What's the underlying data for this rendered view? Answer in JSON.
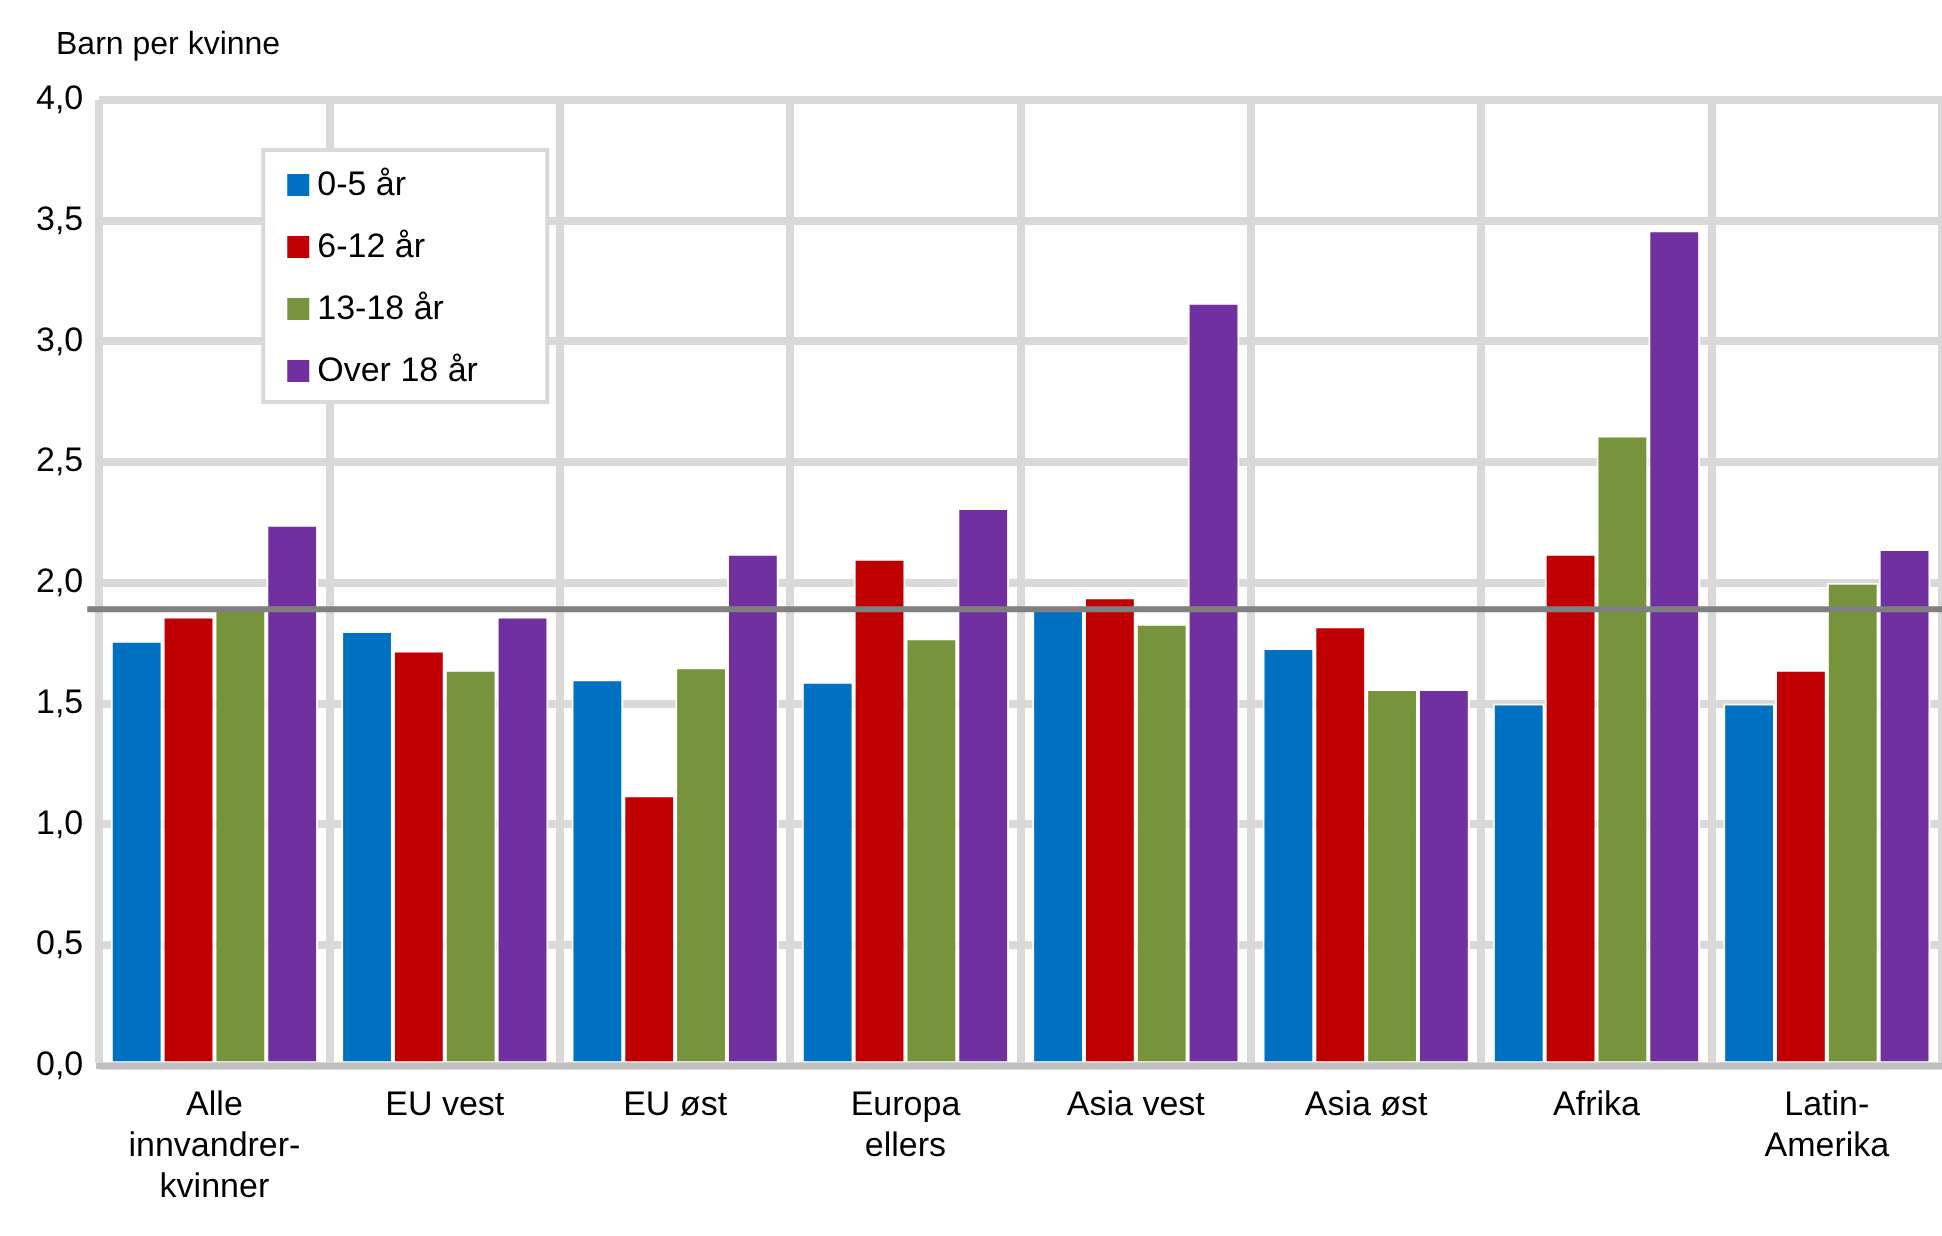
{
  "chart_data": {
    "type": "bar",
    "ylabel": "Barn per kvinne",
    "categories": [
      "Alle\ninnvandrer-\nkvinner",
      "EU vest",
      "EU øst",
      "Europa\nellers",
      "Asia vest",
      "Asia øst",
      "Afrika",
      "Latin-\nAmerika"
    ],
    "series": [
      {
        "name": "0-5 år",
        "color": "#0070c0",
        "values": [
          1.76,
          1.8,
          1.6,
          1.59,
          1.89,
          1.73,
          1.5,
          1.5
        ]
      },
      {
        "name": "6-12 år",
        "color": "#c00000",
        "values": [
          1.86,
          1.72,
          1.12,
          2.1,
          1.94,
          1.82,
          2.12,
          1.64
        ]
      },
      {
        "name": "13-18 år",
        "color": "#77933c",
        "values": [
          1.89,
          1.64,
          1.65,
          1.77,
          1.83,
          1.56,
          2.61,
          2.0
        ]
      },
      {
        "name": "Over 18 år",
        "color": "#7030a0",
        "values": [
          2.24,
          1.86,
          2.12,
          2.31,
          3.16,
          1.56,
          3.46,
          2.14
        ]
      }
    ],
    "ylim": [
      0,
      4
    ],
    "yticks": [
      {
        "value": 0,
        "label": "0,0"
      },
      {
        "value": 0.5,
        "label": "0,5"
      },
      {
        "value": 1,
        "label": "1,0"
      },
      {
        "value": 1.5,
        "label": "1,5"
      },
      {
        "value": 2,
        "label": "2,0"
      },
      {
        "value": 2.5,
        "label": "2,5"
      },
      {
        "value": 3,
        "label": "3,0"
      },
      {
        "value": 3.5,
        "label": "3,5"
      },
      {
        "value": 4,
        "label": "4,0"
      }
    ],
    "ref_lines": [
      {
        "axis": "y",
        "value": 1.89,
        "color": "#808080"
      }
    ],
    "grid": true,
    "legend": "top left"
  }
}
